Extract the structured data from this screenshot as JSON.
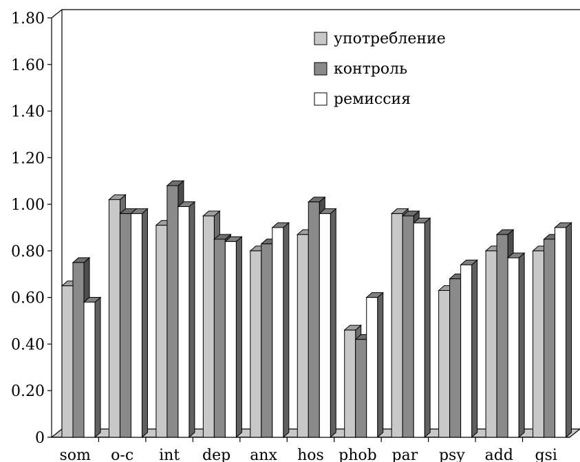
{
  "chart_data": {
    "type": "bar",
    "categories": [
      "som",
      "o-c",
      "int",
      "dep",
      "anx",
      "hos",
      "phob",
      "par",
      "psy",
      "add",
      "gsi"
    ],
    "series": [
      {
        "name": "употребление",
        "color": "#c8c8c8",
        "values": [
          0.65,
          1.02,
          0.91,
          0.95,
          0.8,
          0.87,
          0.46,
          0.96,
          0.63,
          0.8,
          0.8
        ]
      },
      {
        "name": "контроль",
        "color": "#8a8a8a",
        "values": [
          0.75,
          0.96,
          1.08,
          0.85,
          0.83,
          1.01,
          0.42,
          0.95,
          0.68,
          0.87,
          0.85
        ]
      },
      {
        "name": "ремиссия",
        "color": "#ffffff",
        "values": [
          0.58,
          0.96,
          0.99,
          0.84,
          0.9,
          0.96,
          0.6,
          0.92,
          0.74,
          0.77,
          0.9
        ]
      }
    ],
    "yticks": [
      "0",
      "0.20",
      "0.40",
      "0.60",
      "0.80",
      "1.00",
      "1.20",
      "1.40",
      "1.60",
      "1.80"
    ],
    "ylim": [
      0,
      1.8
    ],
    "legend_position": "top-right",
    "title": "",
    "xlabel": "",
    "ylabel": ""
  }
}
